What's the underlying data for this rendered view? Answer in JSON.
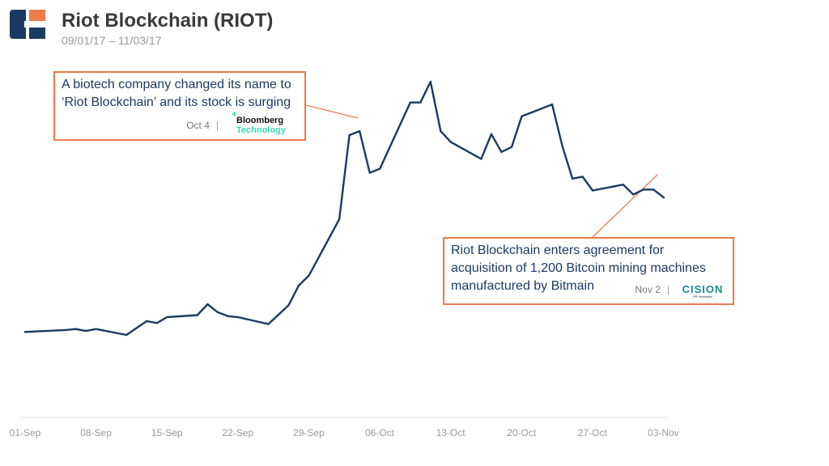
{
  "header": {
    "title": "Riot Blockchain (RIOT)",
    "subtitle": "09/01/17 – 11/03/17"
  },
  "brand_colors": {
    "logo_dark": "#1b3a63",
    "logo_accent": "#ef7a4a",
    "line": "#1b3a63",
    "annotation_border": "#ef7a4a"
  },
  "annotations": [
    {
      "text": "A biotech company changed its name to ‘Riot Blockchain’ and its stock is surging",
      "date": "Oct 4",
      "separator": "|",
      "source_line1": "Bloomberg",
      "source_line2": "Technology",
      "source_icon": "bloomberg-technology-logo"
    },
    {
      "text": "Riot Blockchain enters agreement for acquisition of 1,200 Bitcoin mining machines manufactured by Bitmain",
      "date": "Nov 2",
      "separator": "|",
      "source_line1": "CISION",
      "source_line2": "PR Newswire",
      "source_icon": "cision-logo"
    }
  ],
  "chart_data": {
    "type": "line",
    "title": "Riot Blockchain (RIOT)",
    "xlabel": "",
    "ylabel": "",
    "x_ticks": [
      "01-Sep",
      "08-Sep",
      "15-Sep",
      "22-Sep",
      "29-Sep",
      "06-Oct",
      "13-Oct",
      "20-Oct",
      "27-Oct",
      "03-Nov"
    ],
    "grid": false,
    "series": [
      {
        "color": "#1b3a63",
        "points": [
          {
            "x": "2017-09-01",
            "y": 4.3
          },
          {
            "x": "2017-09-05",
            "y": 4.5
          },
          {
            "x": "2017-09-06",
            "y": 4.6
          },
          {
            "x": "2017-09-07",
            "y": 4.4
          },
          {
            "x": "2017-09-08",
            "y": 4.6
          },
          {
            "x": "2017-09-11",
            "y": 4.0
          },
          {
            "x": "2017-09-13",
            "y": 5.4
          },
          {
            "x": "2017-09-14",
            "y": 5.2
          },
          {
            "x": "2017-09-15",
            "y": 5.8
          },
          {
            "x": "2017-09-18",
            "y": 6.0
          },
          {
            "x": "2017-09-19",
            "y": 7.1
          },
          {
            "x": "2017-09-20",
            "y": 6.3
          },
          {
            "x": "2017-09-21",
            "y": 5.9
          },
          {
            "x": "2017-09-22",
            "y": 5.8
          },
          {
            "x": "2017-09-25",
            "y": 5.1
          },
          {
            "x": "2017-09-27",
            "y": 7.0
          },
          {
            "x": "2017-09-28",
            "y": 9.0
          },
          {
            "x": "2017-09-29",
            "y": 10.0
          },
          {
            "x": "2017-10-02",
            "y": 15.7
          },
          {
            "x": "2017-10-03",
            "y": 24.2
          },
          {
            "x": "2017-10-04",
            "y": 24.6
          },
          {
            "x": "2017-10-05",
            "y": 20.4
          },
          {
            "x": "2017-10-06",
            "y": 20.8
          },
          {
            "x": "2017-10-09",
            "y": 27.5
          },
          {
            "x": "2017-10-10",
            "y": 27.5
          },
          {
            "x": "2017-10-11",
            "y": 29.6
          },
          {
            "x": "2017-10-12",
            "y": 24.6
          },
          {
            "x": "2017-10-13",
            "y": 23.5
          },
          {
            "x": "2017-10-16",
            "y": 21.8
          },
          {
            "x": "2017-10-17",
            "y": 24.3
          },
          {
            "x": "2017-10-18",
            "y": 22.5
          },
          {
            "x": "2017-10-19",
            "y": 23.0
          },
          {
            "x": "2017-10-20",
            "y": 26.1
          },
          {
            "x": "2017-10-23",
            "y": 27.3
          },
          {
            "x": "2017-10-24",
            "y": 23.1
          },
          {
            "x": "2017-10-25",
            "y": 19.8
          },
          {
            "x": "2017-10-26",
            "y": 20.0
          },
          {
            "x": "2017-10-27",
            "y": 18.6
          },
          {
            "x": "2017-10-30",
            "y": 19.2
          },
          {
            "x": "2017-10-31",
            "y": 18.2
          },
          {
            "x": "2017-11-01",
            "y": 18.7
          },
          {
            "x": "2017-11-02",
            "y": 18.7
          },
          {
            "x": "2017-11-03",
            "y": 17.9
          }
        ]
      }
    ]
  }
}
